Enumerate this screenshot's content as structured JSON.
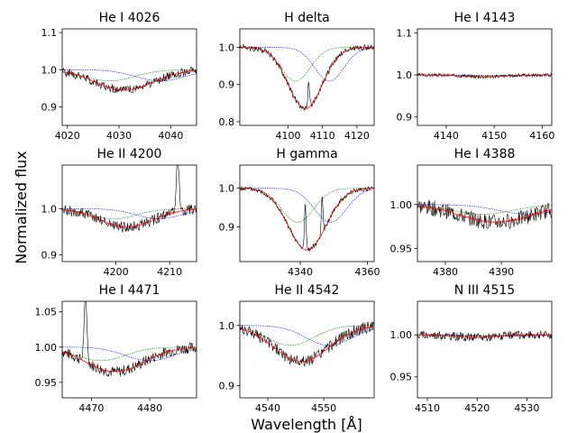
{
  "figure": {
    "xlabel": "Wavelength [Å]",
    "ylabel": "Normalized flux"
  },
  "chart_data": [
    {
      "type": "line",
      "title": "He I 4026",
      "xlim": [
        4019,
        4045
      ],
      "ylim": [
        0.85,
        1.11
      ],
      "xticks": [
        4020,
        4030,
        4040
      ],
      "yticks": [
        0.9,
        1.0,
        1.1
      ],
      "xticklabels": [
        "4020",
        "4030",
        "4040"
      ],
      "yticklabels": [
        "0.9",
        "1.0",
        "1.1"
      ],
      "line": {
        "center": 4031,
        "width": 8,
        "depth": 0.055
      },
      "shift": 7,
      "noise": 0.012,
      "seed": 1,
      "spikes": [],
      "series": [
        "observed",
        "model",
        "component 1",
        "component 2"
      ]
    },
    {
      "type": "line",
      "title": "H delta",
      "xlim": [
        4086,
        4125
      ],
      "ylim": [
        0.79,
        1.05
      ],
      "xticks": [
        4100,
        4110,
        4120
      ],
      "yticks": [
        0.8,
        0.9,
        1.0
      ],
      "xticklabels": [
        "4100",
        "4110",
        "4120"
      ],
      "yticklabels": [
        "0.8",
        "0.9",
        "1.0"
      ],
      "line": {
        "center": 4105,
        "width": 7,
        "depth": 0.165
      },
      "shift": 7,
      "noise": 0.008,
      "seed": 2,
      "spikes": [
        [
          4106,
          0.07
        ]
      ],
      "series": [
        "observed",
        "model",
        "component 1",
        "component 2"
      ]
    },
    {
      "type": "line",
      "title": "He I 4143",
      "xlim": [
        4134,
        4162
      ],
      "ylim": [
        0.88,
        1.11
      ],
      "xticks": [
        4140,
        4150,
        4160
      ],
      "yticks": [
        0.9,
        1.0,
        1.1
      ],
      "xticklabels": [
        "4140",
        "4150",
        "4160"
      ],
      "yticklabels": [
        "0.9",
        "1.0",
        "1.1"
      ],
      "line": {
        "center": 4148,
        "width": 6,
        "depth": 0.004
      },
      "shift": 6,
      "noise": 0.004,
      "seed": 3,
      "spikes": [],
      "series": [
        "observed",
        "model",
        "component 1",
        "component 2"
      ]
    },
    {
      "type": "line",
      "title": "He II 4200",
      "xlim": [
        4190,
        4215
      ],
      "ylim": [
        0.885,
        1.095
      ],
      "xticks": [
        4200,
        4210
      ],
      "yticks": [
        0.9,
        1.0
      ],
      "xticklabels": [
        "4200",
        "4210"
      ],
      "yticklabels": [
        "0.9",
        "1.0"
      ],
      "line": {
        "center": 4202,
        "width": 7,
        "depth": 0.04
      },
      "shift": 6,
      "noise": 0.012,
      "seed": 4,
      "spikes": [
        [
          4211.5,
          0.12
        ]
      ],
      "series": [
        "observed",
        "model",
        "component 1",
        "component 2"
      ]
    },
    {
      "type": "line",
      "title": "H gamma",
      "xlim": [
        4322,
        4362
      ],
      "ylim": [
        0.81,
        1.06
      ],
      "xticks": [
        4340,
        4360
      ],
      "yticks": [
        0.9,
        1.0
      ],
      "xticklabels": [
        "4340",
        "4360"
      ],
      "yticklabels": [
        "0.9",
        "1.0"
      ],
      "line": {
        "center": 4342,
        "width": 8,
        "depth": 0.16
      },
      "shift": 7,
      "noise": 0.006,
      "seed": 5,
      "spikes": [
        [
          4341.5,
          0.12
        ],
        [
          4346.5,
          0.09
        ]
      ],
      "series": [
        "observed",
        "model",
        "component 1",
        "component 2"
      ]
    },
    {
      "type": "line",
      "title": "He I 4388",
      "xlim": [
        4375,
        4399
      ],
      "ylim": [
        0.935,
        1.045
      ],
      "xticks": [
        4380,
        4390
      ],
      "yticks": [
        0.95,
        1.0
      ],
      "xticklabels": [
        "4380",
        "4390"
      ],
      "yticklabels": [
        "0.95",
        "1.00"
      ],
      "line": {
        "center": 4389,
        "width": 9,
        "depth": 0.02
      },
      "shift": 6,
      "noise": 0.009,
      "seed": 6,
      "spikes": [],
      "series": [
        "observed",
        "model",
        "component 1",
        "component 2"
      ]
    },
    {
      "type": "line",
      "title": "He I 4471",
      "xlim": [
        4465,
        4488
      ],
      "ylim": [
        0.928,
        1.065
      ],
      "xticks": [
        4470,
        4480
      ],
      "yticks": [
        0.95,
        1.0,
        1.05
      ],
      "xticklabels": [
        "4470",
        "4480"
      ],
      "yticklabels": [
        "0.95",
        "1.00",
        "1.05"
      ],
      "line": {
        "center": 4474,
        "width": 7,
        "depth": 0.035
      },
      "shift": 6,
      "noise": 0.008,
      "seed": 7,
      "spikes": [
        [
          4469,
          0.09
        ]
      ],
      "series": [
        "observed",
        "model",
        "component 1",
        "component 2"
      ]
    },
    {
      "type": "line",
      "title": "He II 4542",
      "xlim": [
        4535,
        4559
      ],
      "ylim": [
        0.88,
        1.04
      ],
      "xticks": [
        4540,
        4550
      ],
      "yticks": [
        0.9,
        1.0
      ],
      "xticklabels": [
        "4540",
        "4550"
      ],
      "yticklabels": [
        "0.9",
        "1.0"
      ],
      "line": {
        "center": 4546,
        "width": 7,
        "depth": 0.06
      },
      "shift": 5,
      "noise": 0.01,
      "seed": 8,
      "spikes": [],
      "series": [
        "observed",
        "model",
        "component 1",
        "component 2"
      ]
    },
    {
      "type": "line",
      "title": "N III 4515",
      "xlim": [
        4508,
        4535
      ],
      "ylim": [
        0.925,
        1.04
      ],
      "xticks": [
        4510,
        4520,
        4530
      ],
      "yticks": [
        0.95,
        1.0
      ],
      "xticklabels": [
        "4510",
        "4520",
        "4530"
      ],
      "yticklabels": [
        "0.95",
        "1.00"
      ],
      "line": {
        "center": 4520,
        "width": 6,
        "depth": 0.003
      },
      "shift": 6,
      "noise": 0.005,
      "seed": 9,
      "spikes": [],
      "series": [
        "observed",
        "model",
        "component 1",
        "component 2"
      ]
    }
  ],
  "colors": {
    "observed": "#000000",
    "model": "#ff0000",
    "component_1": "#0000ff",
    "component_2": "#008000"
  }
}
